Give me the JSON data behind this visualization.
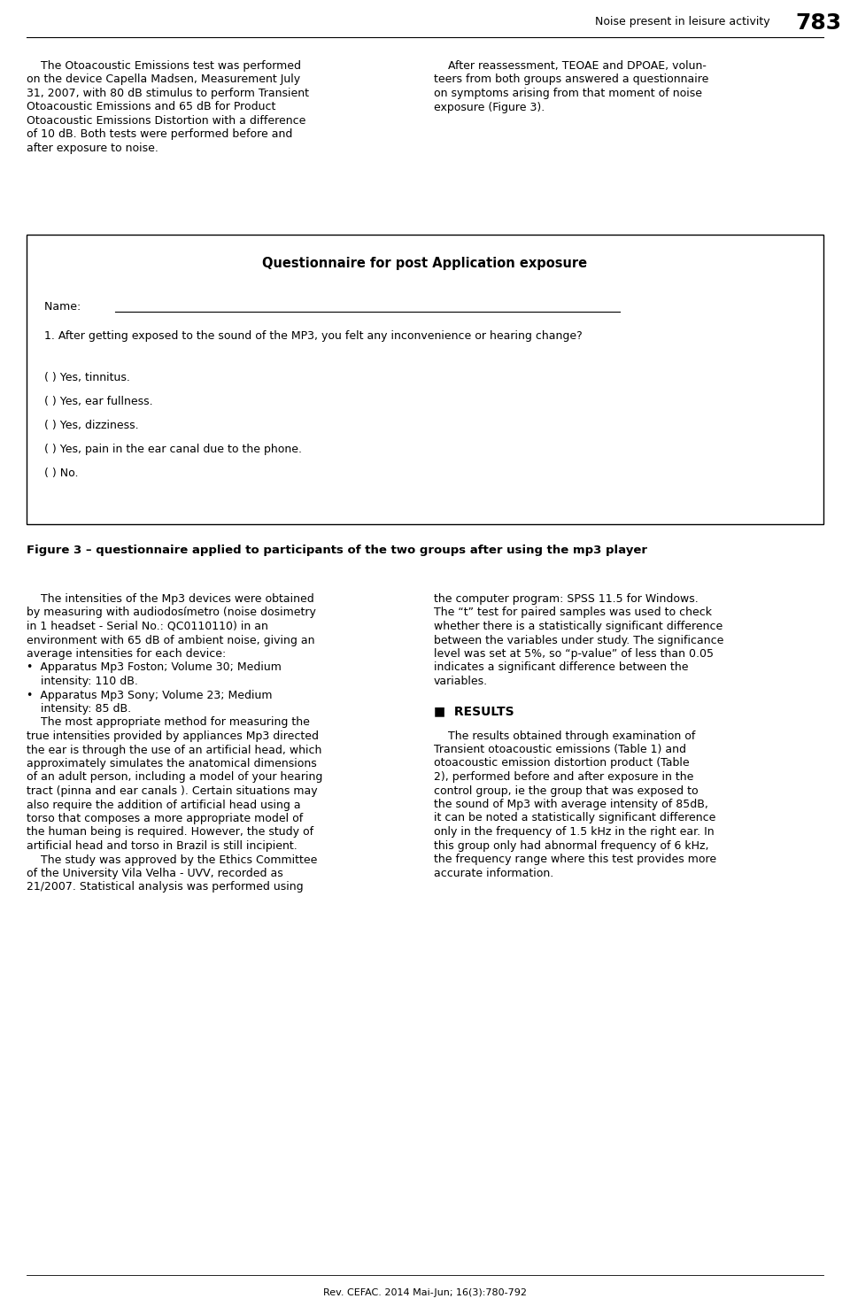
{
  "bg_color": "#ffffff",
  "header_right": "Noise present in leisure activity",
  "header_page": "783",
  "col1_para1_lines": [
    "    The Otoacoustic Emissions test was performed",
    "on the device Capella Madsen, Measurement July",
    "31, 2007, with 80 dB stimulus to perform Transient",
    "Otoacoustic Emissions and 65 dB for Product",
    "Otoacoustic Emissions Distortion with a difference",
    "of 10 dB. Both tests were performed before and",
    "after exposure to noise."
  ],
  "col2_para1_lines": [
    "    After reassessment, TEOAE and DPOAE, volun-",
    "teers from both groups answered a questionnaire",
    "on symptoms arising from that moment of noise",
    "exposure (Figure 3)."
  ],
  "questionnaire_title": "Questionnaire for post Application exposure",
  "name_label": "Name: ",
  "question1": "1. After getting exposed to the sound of the MP3, you felt any inconvenience or hearing change?",
  "options": [
    "( ) Yes, tinnitus.",
    "( ) Yes, ear fullness.",
    "( ) Yes, dizziness.",
    "( ) Yes, pain in the ear canal due to the phone.",
    "( ) No."
  ],
  "figure_caption": "Figure 3 – questionnaire applied to participants of the two groups after using the mp3 player",
  "col1_para2_lines": [
    "    The intensities of the Mp3 devices were obtained",
    "by measuring with audiodosímetro (noise dosimetry",
    "in 1 headset - Serial No.: QC0110110) in an",
    "environment with 65 dB of ambient noise, giving an",
    "average intensities for each device:",
    "•  Apparatus Mp3 Foston; Volume 30; Medium",
    "    intensity: 110 dB.",
    "•  Apparatus Mp3 Sony; Volume 23; Medium",
    "    intensity: 85 dB.",
    "    The most appropriate method for measuring the",
    "true intensities provided by appliances Mp3 directed",
    "the ear is through the use of an artificial head, which",
    "approximately simulates the anatomical dimensions",
    "of an adult person, including a model of your hearing",
    "tract (pinna and ear canals ). Certain situations may",
    "also require the addition of artificial head using a",
    "torso that composes a more appropriate model of",
    "the human being is required. However, the study of",
    "artificial head and torso in Brazil is still incipient.",
    "    The study was approved by the Ethics Committee",
    "of the University Vila Velha - UVV, recorded as",
    "21/2007. Statistical analysis was performed using"
  ],
  "col2_para2_lines": [
    "the computer program: SPSS 11.5 for Windows.",
    "The “t” test for paired samples was used to check",
    "whether there is a statistically significant difference",
    "between the variables under study. The significance",
    "level was set at 5%, so “p-value” of less than 0.05",
    "indicates a significant difference between the",
    "variables."
  ],
  "results_header": "■  RESULTS",
  "col2_para3_lines": [
    "    The results obtained through examination of",
    "Transient otoacoustic emissions (Table 1) and",
    "otoacoustic emission distortion product (Table",
    "2), performed before and after exposure in the",
    "control group, ie the group that was exposed to",
    "the sound of Mp3 with average intensity of 85dB,",
    "it can be noted a statistically significant difference",
    "only in the frequency of 1.5 kHz in the right ear. In",
    "this group only had abnormal frequency of 6 kHz,",
    "the frequency range where this test provides more",
    "accurate information."
  ],
  "footer": "Rev. CEFAC. 2014 Mai-Jun; 16(3):780-792",
  "text_color": "#000000",
  "font_size_body": 9.0,
  "font_size_caption": 9.5,
  "font_size_header_text": 9.0,
  "font_size_page_num": 18,
  "font_size_results": 10.0
}
